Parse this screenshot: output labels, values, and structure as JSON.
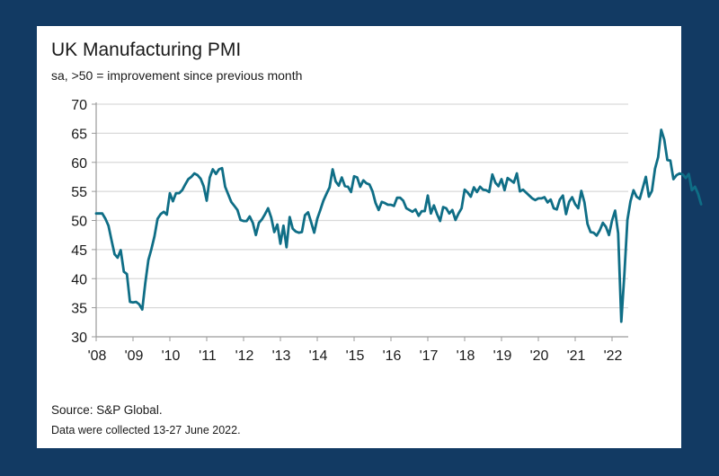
{
  "chart_data": {
    "type": "line",
    "title": "UK Manufacturing PMI",
    "subtitle": "sa, >50 = improvement since previous month",
    "xlabel": "",
    "ylabel": "",
    "ylim": [
      30,
      70
    ],
    "yticks": [
      30,
      35,
      40,
      45,
      50,
      55,
      60,
      65,
      70
    ],
    "xticks": [
      "'08",
      "'09",
      "'10",
      "'11",
      "'12",
      "'13",
      "'14",
      "'15",
      "'16",
      "'17",
      "'18",
      "'19",
      "'20",
      "'21",
      "'22"
    ],
    "grid": true,
    "x_start": "2008-01",
    "frequency": "monthly",
    "series": [
      {
        "name": "UK Manufacturing PMI",
        "color": "#0f6e86",
        "values": [
          51.2,
          51.2,
          51.2,
          50.3,
          49.1,
          46.6,
          44.2,
          43.6,
          44.9,
          41.2,
          40.8,
          36.0,
          35.9,
          36.0,
          35.6,
          34.7,
          39.3,
          43.2,
          45.1,
          47.3,
          50.3,
          51.1,
          51.5,
          51.0,
          54.7,
          53.3,
          54.7,
          54.7,
          55.2,
          56.2,
          57.1,
          57.5,
          58.1,
          57.8,
          57.2,
          55.9,
          53.4,
          57.4,
          58.8,
          58.0,
          58.8,
          59.0,
          55.8,
          54.5,
          53.2,
          52.5,
          51.8,
          50.1,
          49.9,
          49.9,
          50.7,
          49.6,
          47.5,
          49.6,
          50.2,
          51.1,
          52.1,
          50.5,
          48.0,
          49.3,
          46.0,
          49.1,
          45.4,
          50.6,
          48.6,
          48.1,
          47.9,
          48.0,
          50.9,
          51.4,
          49.7,
          47.9,
          50.3,
          51.8,
          53.4,
          54.6,
          55.7,
          58.8,
          56.7,
          56.0,
          57.4,
          55.9,
          55.8,
          54.9,
          57.6,
          57.4,
          55.8,
          56.9,
          56.4,
          56.2,
          55.0,
          53.0,
          51.8,
          53.2,
          53.0,
          52.7,
          52.7,
          52.5,
          53.9,
          53.9,
          53.4,
          52.1,
          51.8,
          51.5,
          51.9,
          50.8,
          51.6,
          51.6,
          54.3,
          51.2,
          52.6,
          51.1,
          49.9,
          52.3,
          52.1,
          51.2,
          51.8,
          50.1,
          51.2,
          52.1,
          55.3,
          54.8,
          54.1,
          55.7,
          54.9,
          55.8,
          55.3,
          55.2,
          54.9,
          57.9,
          56.5,
          55.9,
          57.1,
          55.2,
          57.3,
          56.9,
          56.5,
          58.1,
          55.0,
          55.3,
          54.8,
          54.3,
          53.8,
          53.5,
          53.8,
          53.8,
          54.0,
          53.1,
          53.6,
          52.1,
          51.9,
          53.6,
          54.3,
          51.1,
          53.2,
          54.0,
          52.8,
          52.1,
          55.1,
          53.1,
          49.4,
          48.0,
          47.9,
          47.4,
          48.3,
          49.6,
          48.9,
          47.5,
          50.0,
          51.7,
          47.8,
          32.6,
          40.7,
          50.1,
          53.3,
          55.2,
          54.1,
          53.7,
          55.6,
          57.5,
          54.1,
          55.1,
          58.9,
          60.9,
          65.6,
          63.9,
          60.4,
          60.3,
          57.1,
          57.8,
          58.1,
          57.9,
          57.3,
          58.0,
          55.2,
          55.8,
          54.6,
          52.8
        ]
      }
    ],
    "source": "Source: S&P Global.",
    "note": "Data were collected 13-27 June 2022."
  }
}
